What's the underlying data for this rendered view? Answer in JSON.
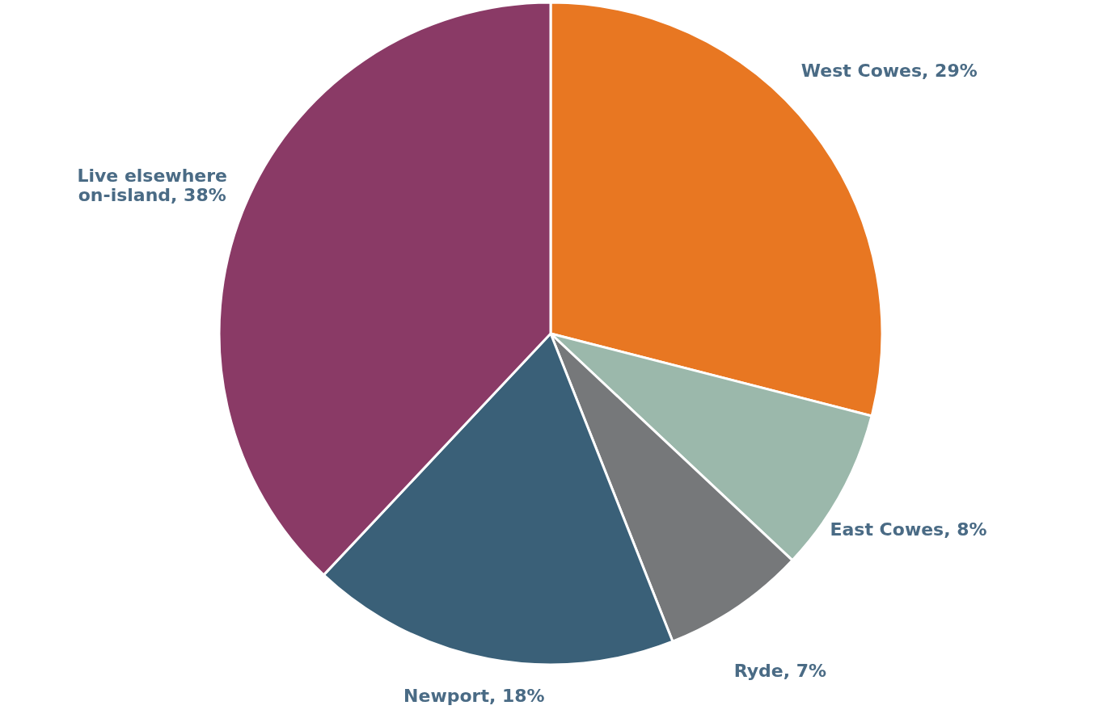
{
  "chart_data": {
    "type": "pie",
    "categories": [
      "West Cowes",
      "East Cowes",
      "Ryde",
      "Newport",
      "Live elsewhere on-island"
    ],
    "values": [
      29,
      8,
      7,
      18,
      38
    ],
    "value_labels": [
      "29%",
      "8%",
      "7%",
      "18%",
      "38%"
    ],
    "colors": [
      "#e87722",
      "#9bb8ab",
      "#76787a",
      "#3a6078",
      "#8a3a66"
    ]
  }
}
